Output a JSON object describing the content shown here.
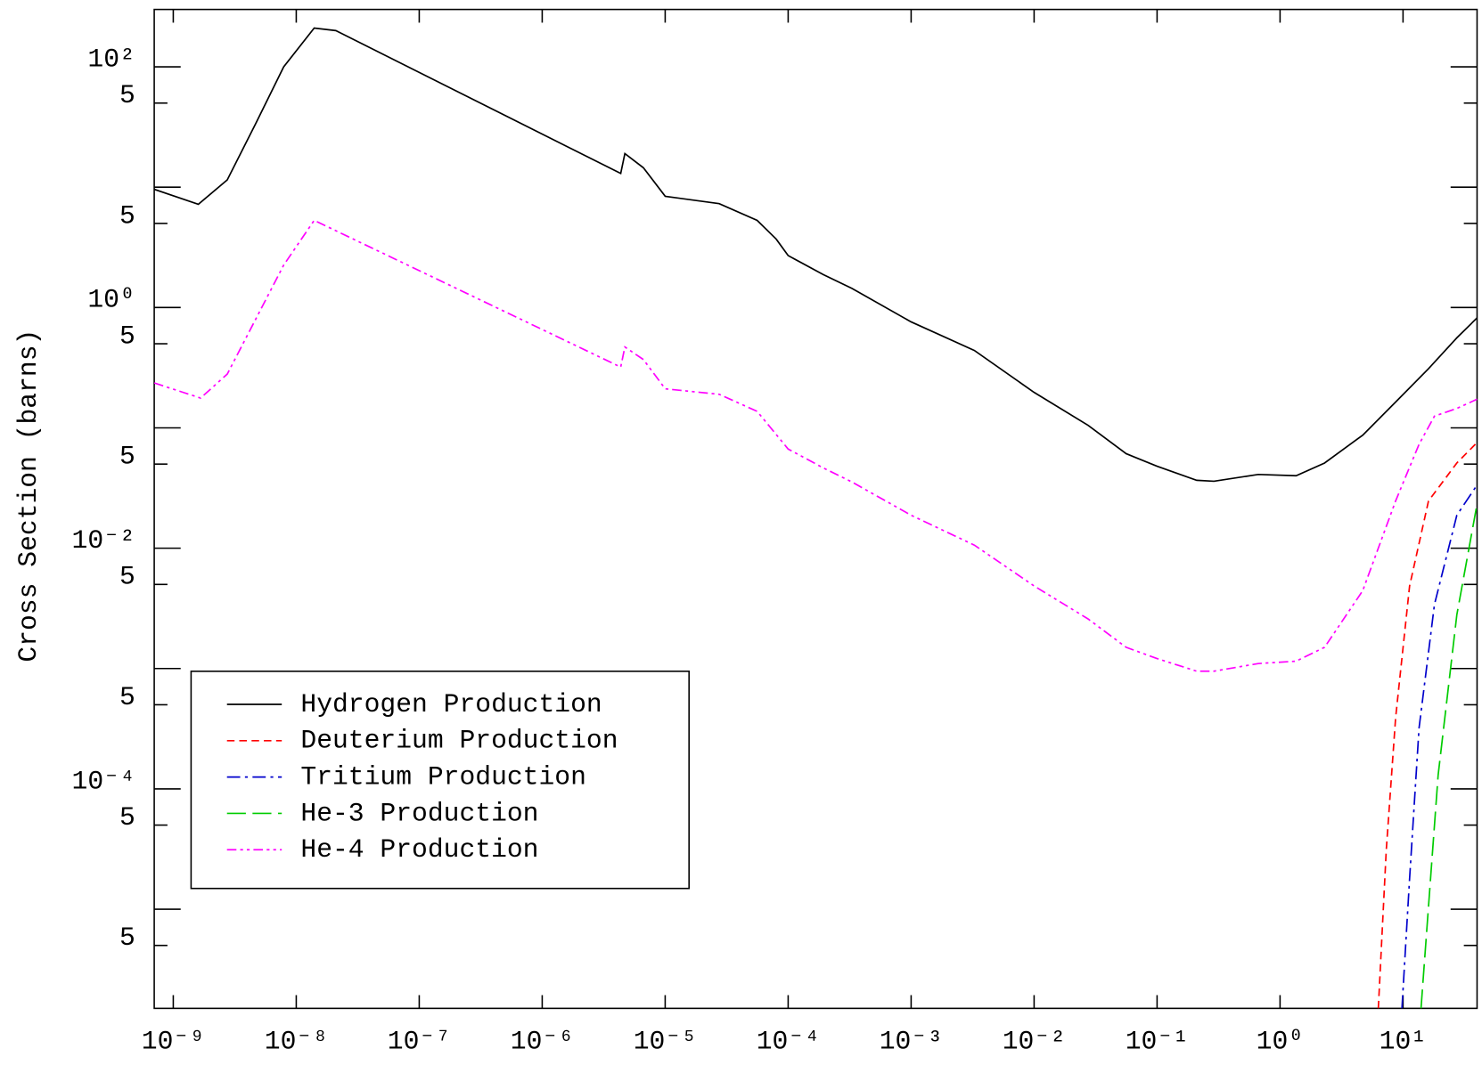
{
  "chart_data": {
    "type": "line",
    "y_label": "Cross Section (barns)",
    "xscale": "log",
    "yscale": "log",
    "xlim": [
      7e-10,
      40
    ],
    "ylim": [
      1.5e-06,
      300
    ],
    "xticks": [
      {
        "value": 1e-09,
        "label": "10⁻⁹"
      },
      {
        "value": 1e-08,
        "label": "10⁻⁸"
      },
      {
        "value": 1e-07,
        "label": "10⁻⁷"
      },
      {
        "value": 1e-06,
        "label": "10⁻⁶"
      },
      {
        "value": 1e-05,
        "label": "10⁻⁵"
      },
      {
        "value": 0.0001,
        "label": "10⁻⁴"
      },
      {
        "value": 0.001,
        "label": "10⁻³"
      },
      {
        "value": 0.01,
        "label": "10⁻²"
      },
      {
        "value": 0.1,
        "label": "10⁻¹"
      },
      {
        "value": 1,
        "label": "10⁰"
      },
      {
        "value": 10,
        "label": "10¹"
      }
    ],
    "yticks": [
      {
        "value": 100,
        "label": "10²"
      },
      {
        "value": 50,
        "label": "5"
      },
      {
        "value": 5,
        "label": "5"
      },
      {
        "value": 1,
        "label": "10⁰"
      },
      {
        "value": 0.5,
        "label": "5"
      },
      {
        "value": 0.05,
        "label": "5"
      },
      {
        "value": 0.01,
        "label": "10⁻²"
      },
      {
        "value": 0.005,
        "label": "5"
      },
      {
        "value": 0.0005,
        "label": "5"
      },
      {
        "value": 0.0001,
        "label": "10⁻⁴"
      },
      {
        "value": 5e-05,
        "label": "5"
      },
      {
        "value": 5e-06,
        "label": "5"
      }
    ],
    "yticks_unlabeled": [
      10,
      0.1,
      0.001,
      1e-05
    ],
    "legend": "lower left",
    "series": [
      {
        "name": "Hydrogen Production",
        "color": "#000000",
        "linestyle": "solid",
        "x": [
          7e-10,
          1.6e-09,
          2.75e-09,
          4.7e-09,
          7.9e-09,
          1.4e-08,
          2.1e-08,
          4.35e-06,
          4.7e-06,
          6.65e-06,
          1e-05,
          2.75e-05,
          5.6e-05,
          8e-05,
          0.0001,
          0.000193,
          0.00033,
          0.001,
          0.00327,
          0.01,
          0.0275,
          0.056,
          0.1,
          0.21,
          0.29,
          0.665,
          1.35,
          2.3,
          4.7,
          8.7,
          16.1,
          27.4,
          40
        ],
        "values": [
          9.6,
          7.2,
          11.5,
          34,
          100,
          210,
          200,
          13,
          19,
          14.5,
          8.4,
          7.3,
          5.3,
          3.7,
          2.7,
          1.88,
          1.44,
          0.76,
          0.44,
          0.197,
          0.105,
          0.061,
          0.048,
          0.0367,
          0.036,
          0.041,
          0.04,
          0.051,
          0.087,
          0.164,
          0.31,
          0.56,
          0.82
        ]
      },
      {
        "name": "Deuterium Production",
        "color": "#ff0000",
        "linestyle": "dashed",
        "x": [
          6.3,
          7.3,
          8.7,
          11.3,
          16.1,
          27.4,
          40
        ],
        "values": [
          1.5e-06,
          3.1e-05,
          0.00039,
          0.00486,
          0.0247,
          0.051,
          0.0755
        ]
      },
      {
        "name": "Tritium Production",
        "color": "#0000cc",
        "linestyle": "dashdot",
        "x": [
          9.8,
          11.3,
          13.5,
          18,
          27.4,
          40
        ],
        "values": [
          1.5e-06,
          1.8e-05,
          0.00032,
          0.0034,
          0.0188,
          0.0335
        ]
      },
      {
        "name": "He-3 Production",
        "color": "#00cc00",
        "linestyle": "longdash",
        "x": [
          14,
          16.1,
          19.3,
          27.4,
          40
        ],
        "values": [
          1.5e-06,
          1.05e-05,
          0.00013,
          0.0028,
          0.0233
        ]
      },
      {
        "name": "He-4 Production",
        "color": "#ff00ff",
        "linestyle": "dashdotdot",
        "x": [
          7e-10,
          1.67e-09,
          2.75e-09,
          7.9e-09,
          1.4e-08,
          4.35e-06,
          4.7e-06,
          6.65e-06,
          1e-05,
          2.75e-05,
          5.6e-05,
          0.0001,
          0.000193,
          0.00033,
          0.001,
          0.00327,
          0.01,
          0.0275,
          0.056,
          0.1,
          0.21,
          0.29,
          0.665,
          1.35,
          2.3,
          4.7,
          8.7,
          13.5,
          18,
          27.4,
          40
        ],
        "values": [
          0.236,
          0.177,
          0.28,
          2.25,
          5.3,
          0.32,
          0.47,
          0.37,
          0.211,
          0.19,
          0.137,
          0.0667,
          0.0465,
          0.0355,
          0.0188,
          0.0106,
          0.00486,
          0.00258,
          0.0015,
          0.00121,
          0.00095,
          0.00095,
          0.0011,
          0.00115,
          0.0015,
          0.00444,
          0.0247,
          0.073,
          0.125,
          0.145,
          0.173
        ]
      }
    ]
  }
}
